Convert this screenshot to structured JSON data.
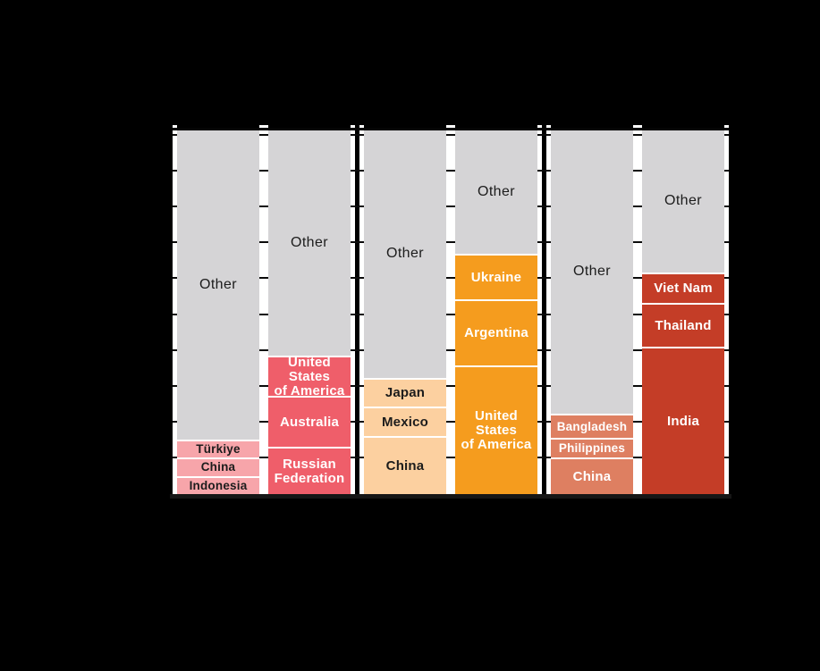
{
  "chart_data": {
    "type": "bar",
    "subtype": "stacked-percentage-columns",
    "orientation": "vertical",
    "ylim": [
      0,
      100
    ],
    "gridlines": "horizontal black lines every 10%, hidden behind opaque bars, visible only in white gaps between bars",
    "legend": "none (segments labeled directly)",
    "other_color": "#d5d4d6",
    "other_text_color": "#1c1c1c",
    "divider_color": "#ffffff",
    "groups": [
      {
        "bars": [
          {
            "color": "#f7a5aa",
            "label_text_color": "#1c1c1c",
            "segments": [
              {
                "label": "Other",
                "value_pct_est": 85,
                "is_other": true
              },
              {
                "label": "Türkiye",
                "value_pct_est": 5
              },
              {
                "label": "China",
                "value_pct_est": 5
              },
              {
                "label": "Indonesia",
                "value_pct_est": 5
              }
            ]
          },
          {
            "color": "#ef5e6a",
            "label_text_color": "#ffffff",
            "segments": [
              {
                "label": "Other",
                "value_pct_est": 62,
                "is_other": true
              },
              {
                "label": "United\nStates\nof America",
                "value_pct_est": 11
              },
              {
                "label": "Australia",
                "value_pct_est": 14
              },
              {
                "label": "Russian\nFederation",
                "value_pct_est": 13
              }
            ]
          }
        ]
      },
      {
        "bars": [
          {
            "color": "#fcd0a0",
            "label_text_color": "#1c1c1c",
            "segments": [
              {
                "label": "Other",
                "value_pct_est": 68,
                "is_other": true
              },
              {
                "label": "Japan",
                "value_pct_est": 8
              },
              {
                "label": "Mexico",
                "value_pct_est": 8
              },
              {
                "label": "China",
                "value_pct_est": 16
              }
            ]
          },
          {
            "color": "#f59c1e",
            "label_text_color": "#ffffff",
            "segments": [
              {
                "label": "Other",
                "value_pct_est": 34,
                "is_other": true
              },
              {
                "label": "Ukraine",
                "value_pct_est": 12.5
              },
              {
                "label": "Argentina",
                "value_pct_est": 18
              },
              {
                "label": "United\nStates\nof America",
                "value_pct_est": 35.5
              }
            ]
          }
        ]
      },
      {
        "bars": [
          {
            "color": "#de7f61",
            "label_text_color": "#ffffff",
            "segments": [
              {
                "label": "Other",
                "value_pct_est": 78,
                "is_other": true
              },
              {
                "label": "Bangladesh",
                "value_pct_est": 6.5
              },
              {
                "label": "Philippines",
                "value_pct_est": 5.5
              },
              {
                "label": "China",
                "value_pct_est": 10
              }
            ]
          },
          {
            "color": "#c43d27",
            "label_text_color": "#ffffff",
            "segments": [
              {
                "label": "Other",
                "value_pct_est": 39,
                "is_other": true
              },
              {
                "label": "Viet Nam",
                "value_pct_est": 8.5
              },
              {
                "label": "Thailand",
                "value_pct_est": 12
              },
              {
                "label": "India",
                "value_pct_est": 40.5
              }
            ]
          }
        ]
      }
    ]
  }
}
